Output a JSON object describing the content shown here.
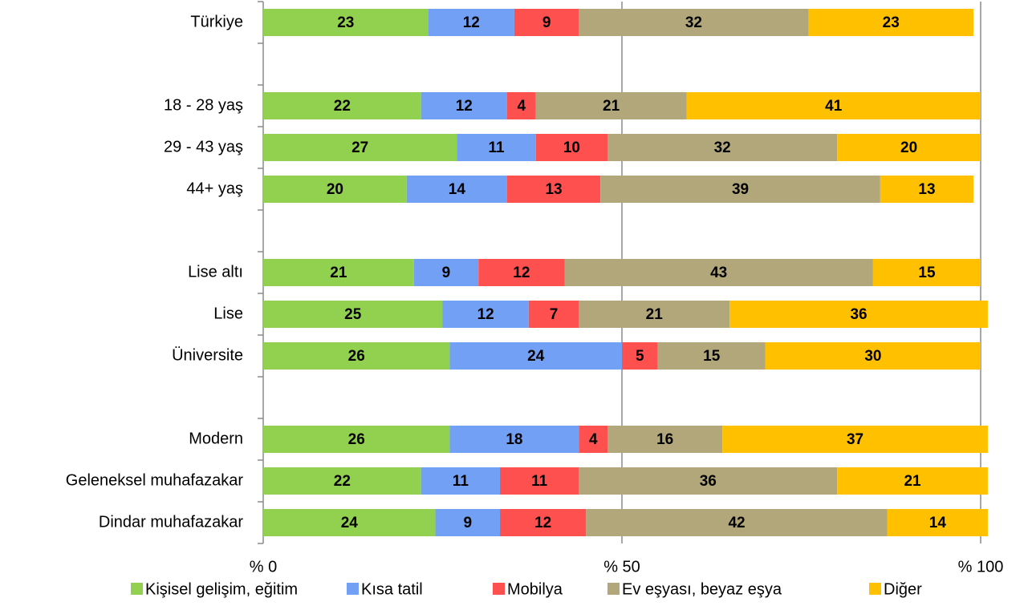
{
  "chart_data": {
    "type": "bar",
    "orientation": "horizontal",
    "stacked": true,
    "categories": [
      "Türkiye",
      null,
      "18 - 28 yaş",
      "29 - 43 yaş",
      "44+ yaş",
      null,
      "Lise altı",
      "Lise",
      "Üniversite",
      null,
      "Modern",
      "Geleneksel muhafazakar",
      "Dindar muhafazakar"
    ],
    "series": [
      {
        "name": "Kişisel gelişim, eğitim",
        "color": "#92d050",
        "values": [
          23,
          null,
          22,
          27,
          20,
          null,
          21,
          25,
          26,
          null,
          26,
          22,
          24
        ]
      },
      {
        "name": "Kısa tatil",
        "color": "#71a0f5",
        "values": [
          12,
          null,
          12,
          11,
          14,
          null,
          9,
          12,
          24,
          null,
          18,
          11,
          9
        ]
      },
      {
        "name": "Mobilya",
        "color": "#ff5050",
        "values": [
          9,
          null,
          4,
          10,
          13,
          null,
          12,
          7,
          5,
          null,
          4,
          11,
          12
        ]
      },
      {
        "name": "Ev eşyası, beyaz eşya",
        "color": "#b2a77a",
        "values": [
          32,
          null,
          21,
          32,
          39,
          null,
          43,
          21,
          15,
          null,
          16,
          36,
          42
        ]
      },
      {
        "name": "Diğer",
        "color": "#ffc000",
        "values": [
          23,
          null,
          41,
          20,
          13,
          null,
          15,
          36,
          30,
          null,
          37,
          21,
          14
        ]
      }
    ],
    "xlim": [
      0,
      100
    ],
    "xticks": [
      {
        "value": 0,
        "label": "% 0"
      },
      {
        "value": 50,
        "label": "% 50"
      },
      {
        "value": 100,
        "label": "% 100"
      }
    ],
    "grid": true,
    "legend": "bottom"
  }
}
